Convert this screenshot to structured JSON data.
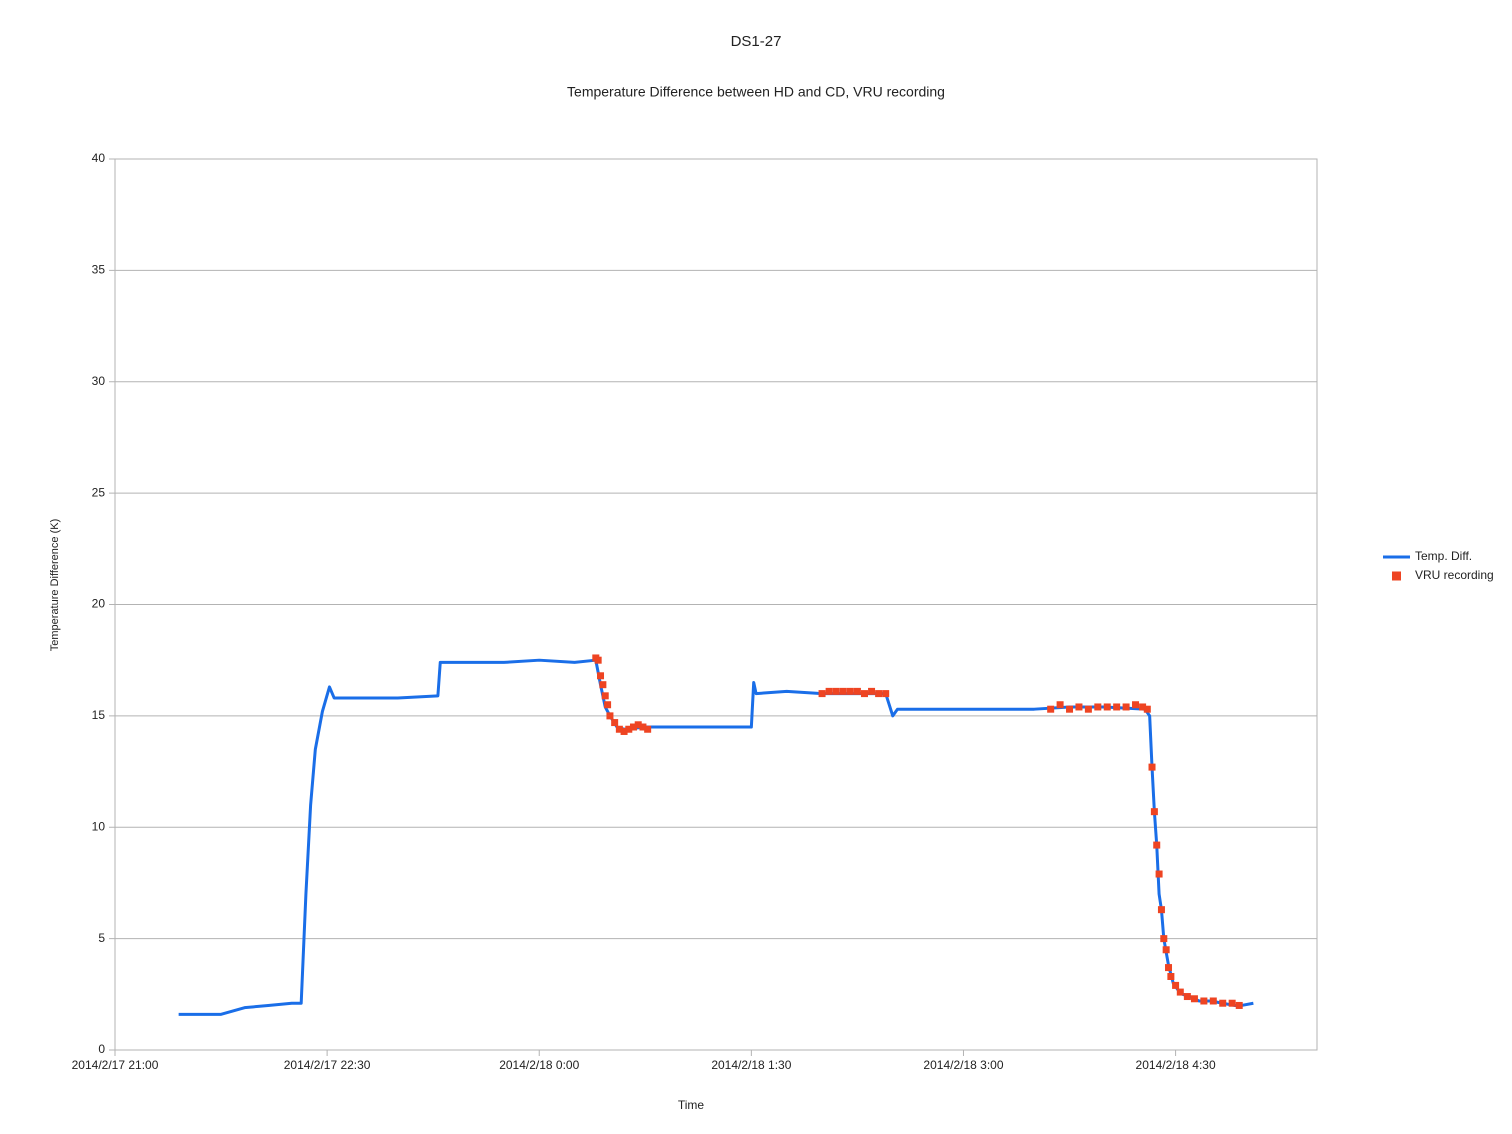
{
  "chart_data": {
    "type": "line",
    "title": "DS1-27",
    "subtitle": "Temperature Difference between HD and CD, VRU recording",
    "x_label": "Time",
    "y_label": "Temperature Difference (K)",
    "xlim": [
      "2014/2/17 21:00",
      "2014/2/18 5:30"
    ],
    "xticks": [
      "2014/2/17 21:00",
      "2014/2/17 22:30",
      "2014/2/18 0:00",
      "2014/2/18 1:30",
      "2014/2/18 3:00",
      "2014/2/18 4:30"
    ],
    "ylim": [
      0,
      40
    ],
    "yticks": [
      0,
      5,
      10,
      15,
      20,
      25,
      30,
      35,
      40
    ],
    "grid": true,
    "legend": "right",
    "series": [
      {
        "name": "Temp. Diff.",
        "color": "#1a6ee8",
        "style": "line",
        "x": [
          "2014/2/17 21:27",
          "2014/2/17 21:35",
          "2014/2/17 21:45",
          "2014/2/17 21:55",
          "2014/2/17 22:05",
          "2014/2/17 22:15",
          "2014/2/17 22:19",
          "2014/2/17 22:21",
          "2014/2/17 22:23",
          "2014/2/17 22:25",
          "2014/2/17 22:28",
          "2014/2/17 22:31",
          "2014/2/17 22:33",
          "2014/2/17 22:45",
          "2014/2/17 23:00",
          "2014/2/17 23:17",
          "2014/2/17 23:18",
          "2014/2/17 23:30",
          "2014/2/17 23:45",
          "2014/2/18 0:00",
          "2014/2/18 0:15",
          "2014/2/18 0:24",
          "2014/2/18 0:26",
          "2014/2/18 0:28",
          "2014/2/18 0:30",
          "2014/2/18 0:33",
          "2014/2/18 0:36",
          "2014/2/18 0:45",
          "2014/2/18 1:00",
          "2014/2/18 1:15",
          "2014/2/18 1:30",
          "2014/2/18 1:31",
          "2014/2/18 1:32",
          "2014/2/18 1:45",
          "2014/2/18 2:00",
          "2014/2/18 2:15",
          "2014/2/18 2:27",
          "2014/2/18 2:30",
          "2014/2/18 2:32",
          "2014/2/18 2:45",
          "2014/2/18 3:00",
          "2014/2/18 3:15",
          "2014/2/18 3:30",
          "2014/2/18 3:45",
          "2014/2/18 4:00",
          "2014/2/18 4:17",
          "2014/2/18 4:19",
          "2014/2/18 4:20",
          "2014/2/18 4:21",
          "2014/2/18 4:22",
          "2014/2/18 4:23",
          "2014/2/18 4:24",
          "2014/2/18 4:25",
          "2014/2/18 4:26",
          "2014/2/18 4:27",
          "2014/2/18 4:28",
          "2014/2/18 4:29",
          "2014/2/18 4:31",
          "2014/2/18 4:33",
          "2014/2/18 4:36",
          "2014/2/18 4:40",
          "2014/2/18 4:45",
          "2014/2/18 4:50",
          "2014/2/18 4:55",
          "2014/2/18 4:58",
          "2014/2/18 5:03"
        ],
        "values": [
          1.6,
          1.6,
          1.6,
          1.9,
          2.0,
          2.1,
          2.1,
          7,
          11,
          13.5,
          15.2,
          16.3,
          15.8,
          15.8,
          15.8,
          15.9,
          17.4,
          17.4,
          17.4,
          17.5,
          17.4,
          17.5,
          16.4,
          15.4,
          15.0,
          14.5,
          14.4,
          14.5,
          14.5,
          14.5,
          14.5,
          16.5,
          16.0,
          16.1,
          16.0,
          16.0,
          16.0,
          15.0,
          15.3,
          15.3,
          15.3,
          15.3,
          15.3,
          15.4,
          15.4,
          15.3,
          15.0,
          12.7,
          10.7,
          9.2,
          7.0,
          6.3,
          5.0,
          4.4,
          3.8,
          3.4,
          3.0,
          2.7,
          2.5,
          2.4,
          2.2,
          2.2,
          2.1,
          2.0,
          2.0,
          2.1
        ]
      },
      {
        "name": "VRU recording",
        "color": "#ee4422",
        "style": "marker",
        "x": [
          "2014/2/18 0:24",
          "2014/2/18 0:25",
          "2014/2/18 0:26",
          "2014/2/18 0:27",
          "2014/2/18 0:28",
          "2014/2/18 0:29",
          "2014/2/18 0:30",
          "2014/2/18 0:32",
          "2014/2/18 0:34",
          "2014/2/18 0:36",
          "2014/2/18 0:38",
          "2014/2/18 0:40",
          "2014/2/18 0:42",
          "2014/2/18 0:44",
          "2014/2/18 0:46",
          "2014/2/18 2:00",
          "2014/2/18 2:03",
          "2014/2/18 2:06",
          "2014/2/18 2:09",
          "2014/2/18 2:12",
          "2014/2/18 2:15",
          "2014/2/18 2:18",
          "2014/2/18 2:21",
          "2014/2/18 2:24",
          "2014/2/18 2:27",
          "2014/2/18 3:37",
          "2014/2/18 3:41",
          "2014/2/18 3:45",
          "2014/2/18 3:49",
          "2014/2/18 3:53",
          "2014/2/18 3:57",
          "2014/2/18 4:01",
          "2014/2/18 4:05",
          "2014/2/18 4:09",
          "2014/2/18 4:13",
          "2014/2/18 4:16",
          "2014/2/18 4:18",
          "2014/2/18 4:20",
          "2014/2/18 4:21",
          "2014/2/18 4:22",
          "2014/2/18 4:23",
          "2014/2/18 4:24",
          "2014/2/18 4:25",
          "2014/2/18 4:26",
          "2014/2/18 4:27",
          "2014/2/18 4:28",
          "2014/2/18 4:30",
          "2014/2/18 4:32",
          "2014/2/18 4:35",
          "2014/2/18 4:38",
          "2014/2/18 4:42",
          "2014/2/18 4:46",
          "2014/2/18 4:50",
          "2014/2/18 4:54",
          "2014/2/18 4:57"
        ],
        "values": [
          17.6,
          17.5,
          16.8,
          16.4,
          15.9,
          15.5,
          15.0,
          14.7,
          14.4,
          14.3,
          14.4,
          14.5,
          14.6,
          14.5,
          14.4,
          16.0,
          16.1,
          16.1,
          16.1,
          16.1,
          16.1,
          16.0,
          16.1,
          16.0,
          16.0,
          15.3,
          15.5,
          15.3,
          15.4,
          15.3,
          15.4,
          15.4,
          15.4,
          15.4,
          15.5,
          15.4,
          15.3,
          12.7,
          10.7,
          9.2,
          7.9,
          6.3,
          5.0,
          4.5,
          3.7,
          3.3,
          2.9,
          2.6,
          2.4,
          2.3,
          2.2,
          2.2,
          2.1,
          2.1,
          2.0
        ]
      }
    ]
  }
}
